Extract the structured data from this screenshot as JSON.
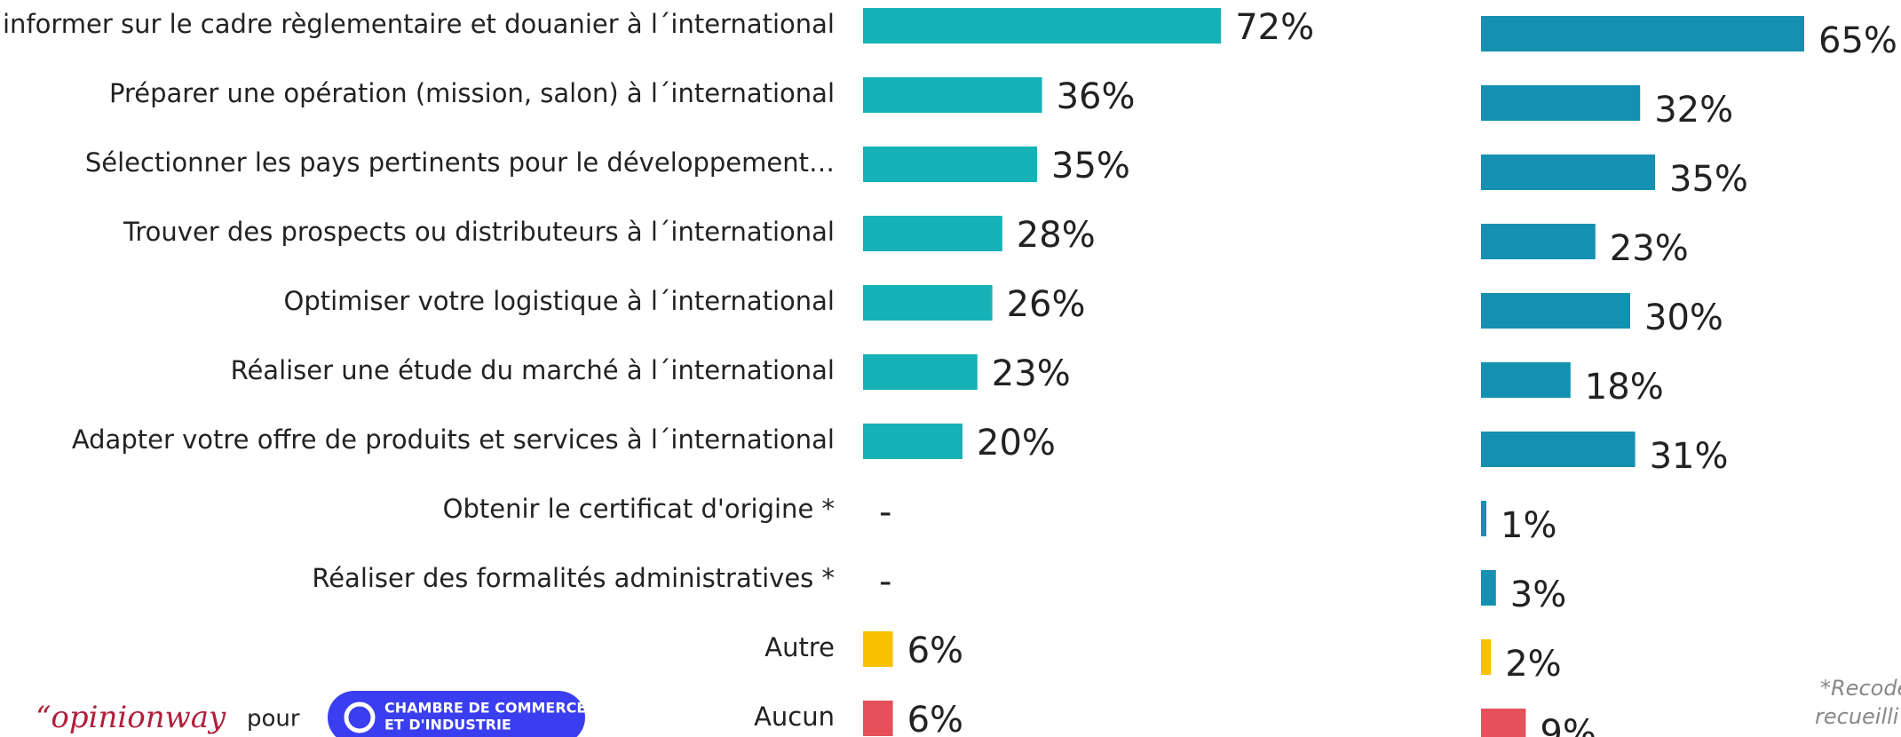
{
  "chart_data": {
    "type": "bar",
    "orientation": "horizontal",
    "categories": [
      "S´informer sur le cadre règlementaire et douanier à l´international",
      "Préparer une opération (mission, salon) à l´international",
      "Sélectionner les pays pertinents pour le développement…",
      "Trouver des prospects ou distributeurs à l´international",
      "Optimiser votre logistique à l´international",
      "Réaliser une étude du marché à l´international",
      "Adapter votre offre de produits et services à l´international",
      "Obtenir le certificat d'origine *",
      "Réaliser des formalités administratives *",
      "Autre",
      "Aucun"
    ],
    "series": [
      {
        "values": [
          72,
          36,
          35,
          28,
          26,
          23,
          20,
          null,
          null,
          6,
          6
        ],
        "value_labels": [
          "72%",
          "36%",
          "35%",
          "28%",
          "26%",
          "23%",
          "20%",
          "-",
          "-",
          "6%",
          "6%"
        ],
        "colors": [
          "#17b2b7",
          "#17b2b7",
          "#17b2b7",
          "#17b2b7",
          "#17b2b7",
          "#17b2b7",
          "#17b2b7",
          "#17b2b7",
          "#17b2b7",
          "#f8c100",
          "#e5505b"
        ]
      },
      {
        "values": [
          65,
          32,
          35,
          23,
          30,
          18,
          31,
          1,
          3,
          2,
          9
        ],
        "value_labels": [
          "65%",
          "32%",
          "35%",
          "23%",
          "30%",
          "18%",
          "31%",
          "1%",
          "3%",
          "2%",
          "9%"
        ],
        "colors": [
          "#1590b0",
          "#1590b0",
          "#1590b0",
          "#1590b0",
          "#1590b0",
          "#1590b0",
          "#1590b0",
          "#1590b0",
          "#1590b0",
          "#f8c100",
          "#e5505b"
        ]
      }
    ],
    "xlim": [
      0,
      100
    ]
  },
  "footer": {
    "logo": "“opinionway",
    "pour": "pour",
    "cci_line1": "CHAMBRE DE COMMERCE",
    "cci_line2": "ET D'INDUSTRIE",
    "note_line1": "*Recodé",
    "note_line2": "recueilli"
  }
}
